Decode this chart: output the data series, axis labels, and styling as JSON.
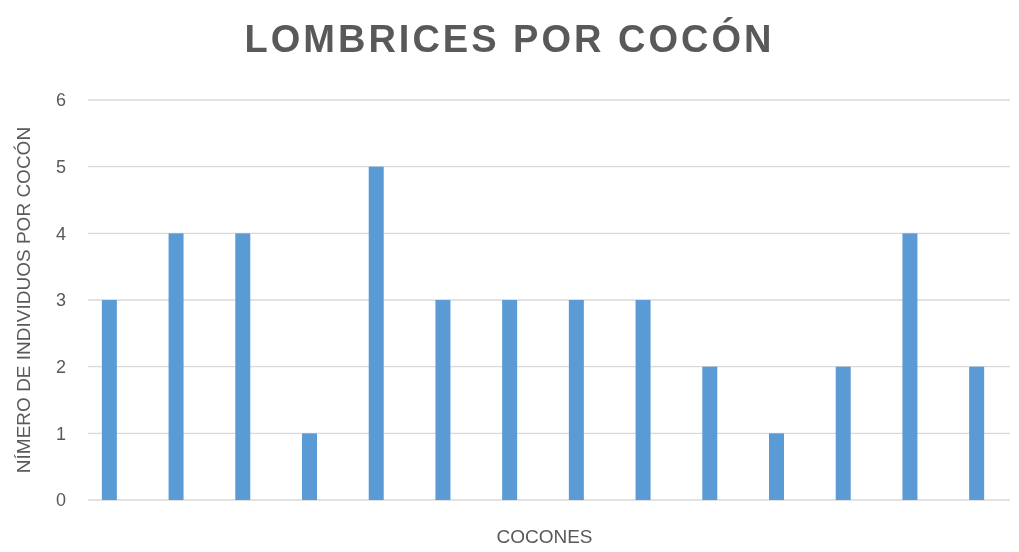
{
  "chart_data": {
    "type": "bar",
    "title": "LOMBRICES POR COCÓN",
    "xlabel": "COCONES",
    "ylabel": "NÍMERO DE INDIVIDUOS POR COCÓN",
    "categories": [
      null,
      null,
      null,
      null,
      null,
      null,
      null,
      null,
      null,
      null,
      null,
      null,
      null,
      null
    ],
    "values": [
      3,
      4,
      4,
      1,
      5,
      3,
      3,
      3,
      3,
      2,
      1,
      2,
      4,
      2
    ],
    "color": "#5b9bd5",
    "ylim": [
      0,
      6
    ],
    "yticks": [
      0,
      1,
      2,
      3,
      4,
      5,
      6
    ],
    "grid": "y"
  }
}
